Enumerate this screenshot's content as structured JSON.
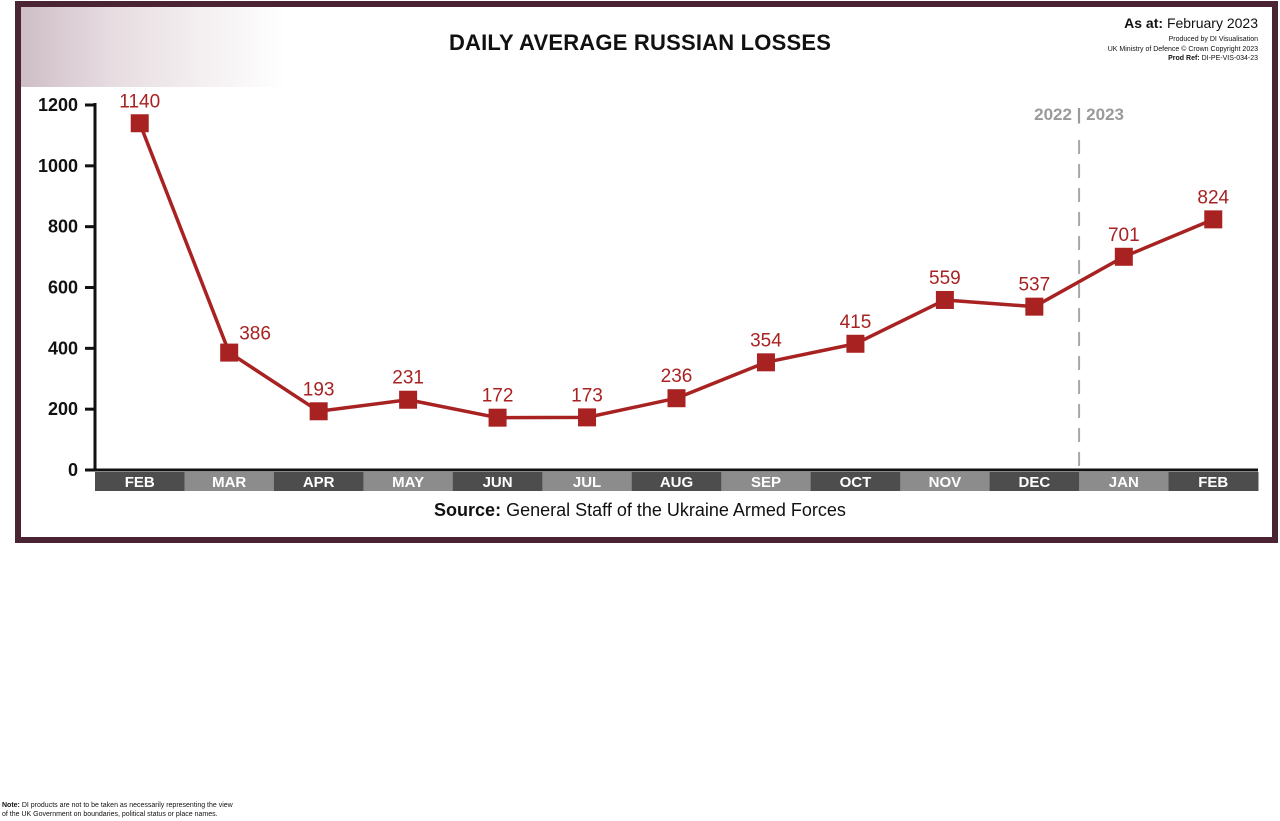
{
  "header": {
    "title": "DAILY AVERAGE RUSSIAN LOSSES",
    "as_at_label": "As at:",
    "as_at_value": "February 2023",
    "produced_by": "Produced by DI Visualisation",
    "copyright": "UK Ministry of Defence © Crown Copyright 2023",
    "prod_ref_label": "Prod Ref:",
    "prod_ref_value": "DI-PE-VIS-034-23"
  },
  "source": {
    "label": "Source:",
    "text": "General Staff of the Ukraine Armed Forces"
  },
  "note": {
    "label": "Note:",
    "line1": "DI products are not to be taken as necessarily representing the view",
    "line2": "of the UK Government on boundaries, political status or place names."
  },
  "chart_data": {
    "type": "line",
    "title": "DAILY AVERAGE RUSSIAN LOSSES",
    "categories": [
      "FEB",
      "MAR",
      "APR",
      "MAY",
      "JUN",
      "JUL",
      "AUG",
      "SEP",
      "OCT",
      "NOV",
      "DEC",
      "JAN",
      "FEB"
    ],
    "values": [
      1140,
      386,
      193,
      231,
      172,
      173,
      236,
      354,
      415,
      559,
      537,
      701,
      824
    ],
    "data_labels": [
      "1140",
      "386",
      "193",
      "231",
      "172",
      "173",
      "236",
      "354",
      "415",
      "559",
      "537",
      "701",
      "824"
    ],
    "ylim": [
      0,
      1200
    ],
    "yticks": [
      "0",
      "200",
      "400",
      "600",
      "800",
      "1000",
      "1200"
    ],
    "year_divider_label": "2022 | 2023",
    "year_divider_after_index": 10,
    "xlabel": "",
    "ylabel": "",
    "grid": false,
    "line_color": "#a82222",
    "category_band_colors": [
      "#4d4d4d",
      "#8c8c8c"
    ]
  }
}
